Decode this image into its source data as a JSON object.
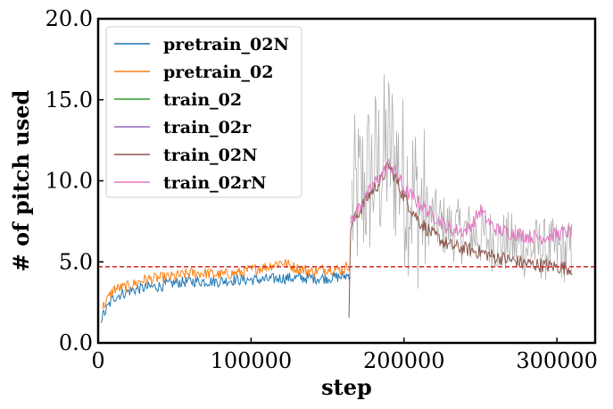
{
  "chart_data": {
    "type": "line",
    "title": "",
    "xlabel": "step",
    "ylabel": "# of pitch used",
    "xlim": [
      0,
      325000
    ],
    "ylim": [
      0,
      20
    ],
    "xticks": [
      0,
      100000,
      200000,
      300000
    ],
    "xtick_labels": [
      "0",
      "100000",
      "200000",
      "300000"
    ],
    "yticks": [
      0,
      5,
      10,
      15,
      20
    ],
    "ytick_labels": [
      "0.0",
      "5.0",
      "10.0",
      "15.0",
      "20.0"
    ],
    "grid": false,
    "legend": "top-left",
    "reference_line": {
      "y": 4.7,
      "color": "#d62728",
      "style": "dashed"
    },
    "series": [
      {
        "name": "pretrain_02N",
        "color": "#1f77b4",
        "x": [
          2000,
          10000,
          20000,
          30000,
          40000,
          50000,
          60000,
          70000,
          80000,
          90000,
          100000,
          110000,
          120000,
          130000,
          140000,
          150000,
          160000,
          165000
        ],
        "y": [
          1.5,
          2.8,
          3.2,
          3.4,
          3.5,
          3.7,
          3.8,
          3.8,
          3.8,
          3.9,
          3.9,
          3.9,
          4.0,
          4.0,
          4.0,
          4.0,
          4.1,
          4.2
        ]
      },
      {
        "name": "pretrain_02",
        "color": "#ff7f0e",
        "x": [
          3000,
          10000,
          20000,
          30000,
          40000,
          50000,
          60000,
          70000,
          80000,
          90000,
          100000,
          110000,
          120000,
          130000,
          140000,
          150000,
          160000,
          165000
        ],
        "y": [
          2.2,
          3.3,
          3.5,
          3.9,
          4.0,
          4.1,
          4.3,
          4.3,
          4.2,
          4.3,
          4.5,
          4.7,
          5.0,
          4.6,
          4.4,
          4.6,
          4.5,
          4.9
        ]
      },
      {
        "name": "train_02",
        "color": "#2ca02c",
        "x": [],
        "y": []
      },
      {
        "name": "train_02r",
        "color": "#9467bd",
        "x": [],
        "y": []
      },
      {
        "name": "train_02N",
        "color": "#8c564b",
        "x": [
          164000,
          165000,
          170000,
          175000,
          180000,
          185000,
          190000,
          195000,
          200000,
          210000,
          220000,
          230000,
          240000,
          250000,
          260000,
          270000,
          280000,
          290000,
          300000,
          310000
        ],
        "y": [
          1.2,
          7.2,
          8.0,
          8.8,
          9.5,
          10.0,
          11.0,
          10.0,
          9.0,
          7.5,
          6.6,
          6.0,
          5.8,
          5.6,
          5.3,
          5.1,
          4.9,
          4.8,
          4.7,
          4.6
        ]
      },
      {
        "name": "train_02rN",
        "color": "#e377c2",
        "x": [
          165000,
          170000,
          175000,
          180000,
          185000,
          190000,
          195000,
          200000,
          210000,
          220000,
          230000,
          240000,
          245000,
          250000,
          255000,
          260000,
          270000,
          280000,
          290000,
          300000,
          310000
        ],
        "y": [
          7.3,
          8.3,
          8.9,
          9.8,
          10.3,
          11.0,
          10.5,
          9.5,
          8.6,
          7.8,
          7.0,
          6.9,
          7.4,
          8.2,
          7.5,
          7.0,
          6.8,
          6.6,
          6.5,
          6.7,
          6.9
        ]
      }
    ]
  }
}
